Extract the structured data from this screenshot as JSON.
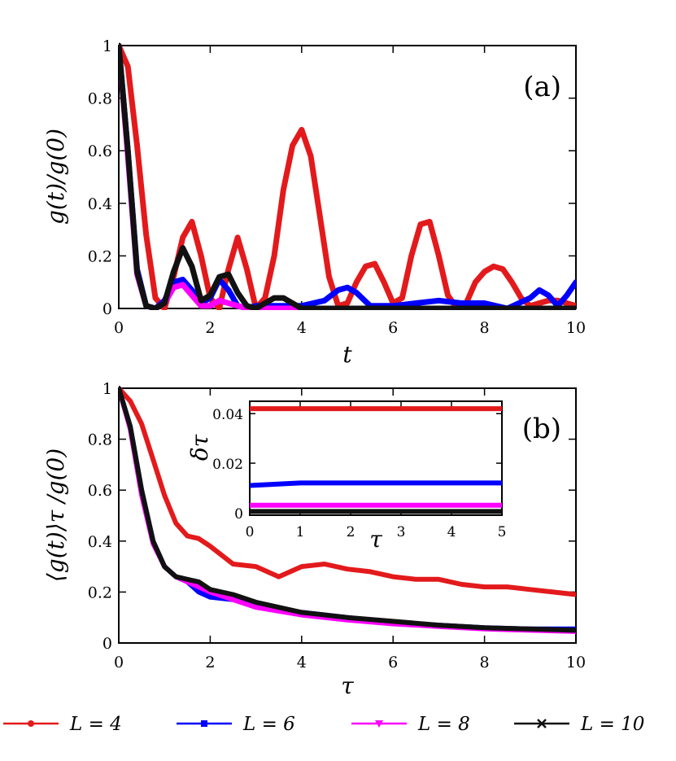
{
  "chart_data": [
    {
      "id": "a",
      "type": "line",
      "panel_label": "(a)",
      "xlabel": "t",
      "ylabel": "g(t)/g(0)",
      "xlim": [
        0,
        10
      ],
      "ylim": [
        0,
        1
      ],
      "xticks": [
        "0",
        "2",
        "4",
        "6",
        "8",
        "10"
      ],
      "yticks": [
        "0",
        "0.2",
        "0.4",
        "0.6",
        "0.8",
        "1"
      ],
      "series": [
        {
          "name": "L = 4",
          "color": "#e31a1c",
          "x": [
            0,
            0.2,
            0.4,
            0.6,
            0.8,
            1.0,
            1.2,
            1.4,
            1.6,
            1.8,
            2.0,
            2.2,
            2.4,
            2.6,
            2.8,
            3.0,
            3.2,
            3.4,
            3.6,
            3.8,
            4.0,
            4.2,
            4.4,
            4.6,
            4.8,
            5.0,
            5.2,
            5.4,
            5.6,
            5.8,
            6.0,
            6.2,
            6.4,
            6.6,
            6.8,
            7.0,
            7.2,
            7.4,
            7.6,
            7.8,
            8.0,
            8.2,
            8.4,
            8.6,
            8.8,
            9.0,
            9.2,
            9.4,
            9.6,
            9.8,
            10.0
          ],
          "y": [
            1.0,
            0.92,
            0.62,
            0.28,
            0.04,
            0.0,
            0.12,
            0.27,
            0.33,
            0.2,
            0.04,
            0.0,
            0.15,
            0.27,
            0.15,
            0.0,
            0.04,
            0.2,
            0.45,
            0.62,
            0.68,
            0.58,
            0.35,
            0.12,
            0.01,
            0.02,
            0.1,
            0.16,
            0.17,
            0.1,
            0.02,
            0.04,
            0.2,
            0.32,
            0.33,
            0.2,
            0.05,
            0.0,
            0.02,
            0.1,
            0.14,
            0.16,
            0.15,
            0.1,
            0.04,
            0.01,
            0.02,
            0.03,
            0.03,
            0.02,
            0.01
          ]
        },
        {
          "name": "L = 6",
          "color": "#0000ff",
          "x": [
            0,
            0.2,
            0.4,
            0.6,
            0.8,
            1.0,
            1.2,
            1.4,
            1.6,
            1.8,
            2.0,
            2.2,
            2.4,
            2.6,
            2.8,
            3.0,
            3.5,
            4.0,
            4.5,
            4.8,
            5.0,
            5.2,
            5.5,
            6.0,
            6.5,
            7.0,
            7.5,
            8.0,
            8.5,
            9.0,
            9.2,
            9.4,
            9.6,
            9.8,
            10.0
          ],
          "y": [
            1.0,
            0.6,
            0.15,
            0.01,
            0.0,
            0.03,
            0.1,
            0.11,
            0.07,
            0.02,
            0.04,
            0.11,
            0.07,
            0.01,
            0.0,
            0.01,
            0.01,
            0.01,
            0.03,
            0.07,
            0.08,
            0.06,
            0.01,
            0.01,
            0.02,
            0.03,
            0.02,
            0.02,
            0.0,
            0.04,
            0.07,
            0.05,
            0.01,
            0.05,
            0.1
          ]
        },
        {
          "name": "L = 8",
          "color": "#ff00ff",
          "x": [
            0,
            0.2,
            0.4,
            0.6,
            0.8,
            1.0,
            1.2,
            1.4,
            1.6,
            1.8,
            2.0,
            2.2,
            2.4,
            2.6,
            2.8,
            3.0,
            4.0,
            5.0,
            6.0,
            7.0,
            8.0,
            9.0,
            10.0
          ],
          "y": [
            1.0,
            0.58,
            0.13,
            0.01,
            0.0,
            0.02,
            0.08,
            0.09,
            0.05,
            0.01,
            0.01,
            0.03,
            0.02,
            0.01,
            0.0,
            0.0,
            0.0,
            0.0,
            0.0,
            0.0,
            0.0,
            0.0,
            0.0
          ]
        },
        {
          "name": "L = 10",
          "color": "#111111",
          "x": [
            0,
            0.2,
            0.4,
            0.6,
            0.8,
            1.0,
            1.2,
            1.4,
            1.6,
            1.8,
            2.0,
            2.2,
            2.4,
            2.6,
            2.8,
            3.0,
            3.2,
            3.4,
            3.6,
            3.8,
            4.0,
            4.5,
            5.0,
            6.0,
            7.0,
            8.0,
            9.0,
            10.0
          ],
          "y": [
            1.0,
            0.6,
            0.14,
            0.01,
            0.0,
            0.02,
            0.14,
            0.23,
            0.16,
            0.03,
            0.05,
            0.12,
            0.13,
            0.06,
            0.01,
            0.0,
            0.02,
            0.04,
            0.04,
            0.02,
            0.0,
            0.0,
            0.0,
            0.0,
            0.0,
            0.0,
            0.0,
            0.0
          ]
        }
      ]
    },
    {
      "id": "b",
      "type": "line",
      "panel_label": "(b)",
      "xlabel": "τ",
      "ylabel": "⟨g(t)⟩τ /g(0)",
      "xlim": [
        0,
        10
      ],
      "ylim": [
        0,
        1
      ],
      "xticks": [
        "0",
        "2",
        "4",
        "6",
        "8",
        "10"
      ],
      "yticks": [
        "0",
        "0.2",
        "0.4",
        "0.6",
        "0.8",
        "1"
      ],
      "series": [
        {
          "name": "L = 4",
          "color": "#e31a1c",
          "x": [
            0,
            0.25,
            0.5,
            0.75,
            1.0,
            1.25,
            1.5,
            1.75,
            2.0,
            2.5,
            3.0,
            3.5,
            4.0,
            4.5,
            5.0,
            5.5,
            6.0,
            6.5,
            7.0,
            7.5,
            8.0,
            8.5,
            9.0,
            9.5,
            10.0
          ],
          "y": [
            1.0,
            0.95,
            0.86,
            0.72,
            0.58,
            0.47,
            0.42,
            0.41,
            0.38,
            0.31,
            0.3,
            0.26,
            0.3,
            0.31,
            0.29,
            0.28,
            0.26,
            0.25,
            0.25,
            0.23,
            0.22,
            0.22,
            0.21,
            0.2,
            0.19
          ]
        },
        {
          "name": "L = 6",
          "color": "#0000ff",
          "x": [
            0,
            0.25,
            0.5,
            0.75,
            1.0,
            1.25,
            1.5,
            1.75,
            2.0,
            2.5,
            3.0,
            4.0,
            5.0,
            6.0,
            7.0,
            8.0,
            9.0,
            10.0
          ],
          "y": [
            1.0,
            0.85,
            0.6,
            0.4,
            0.3,
            0.26,
            0.24,
            0.2,
            0.18,
            0.17,
            0.15,
            0.12,
            0.1,
            0.08,
            0.07,
            0.06,
            0.055,
            0.055
          ]
        },
        {
          "name": "L = 8",
          "color": "#ff00ff",
          "x": [
            0,
            0.25,
            0.5,
            0.75,
            1.0,
            1.25,
            1.5,
            1.75,
            2.0,
            2.5,
            3.0,
            4.0,
            5.0,
            6.0,
            7.0,
            8.0,
            9.0,
            10.0
          ],
          "y": [
            1.0,
            0.84,
            0.58,
            0.39,
            0.3,
            0.26,
            0.24,
            0.22,
            0.2,
            0.17,
            0.14,
            0.11,
            0.09,
            0.075,
            0.065,
            0.055,
            0.05,
            0.045
          ]
        },
        {
          "name": "L = 10",
          "color": "#111111",
          "x": [
            0,
            0.25,
            0.5,
            0.75,
            1.0,
            1.25,
            1.5,
            1.75,
            2.0,
            2.5,
            3.0,
            4.0,
            5.0,
            6.0,
            7.0,
            8.0,
            9.0,
            10.0
          ],
          "y": [
            1.0,
            0.85,
            0.6,
            0.4,
            0.3,
            0.26,
            0.25,
            0.24,
            0.21,
            0.19,
            0.16,
            0.12,
            0.1,
            0.085,
            0.07,
            0.06,
            0.055,
            0.05
          ]
        }
      ]
    },
    {
      "id": "b-inset",
      "type": "line",
      "xlabel": "τ",
      "ylabel": "δτ",
      "xlim": [
        0,
        5
      ],
      "ylim": [
        -0.001,
        0.045
      ],
      "xticks": [
        "0",
        "1",
        "2",
        "3",
        "4",
        "5"
      ],
      "yticks": [
        "0",
        "0.02",
        "0.04"
      ],
      "series": [
        {
          "name": "L = 4",
          "color": "#e31a1c",
          "x": [
            0,
            1,
            2,
            3,
            4,
            5
          ],
          "y": [
            0.042,
            0.042,
            0.042,
            0.042,
            0.042,
            0.042
          ]
        },
        {
          "name": "L = 6",
          "color": "#0000ff",
          "x": [
            0,
            1,
            2,
            3,
            4,
            5
          ],
          "y": [
            0.011,
            0.012,
            0.012,
            0.012,
            0.012,
            0.012
          ]
        },
        {
          "name": "L = 8",
          "color": "#ff00ff",
          "x": [
            0,
            1,
            2,
            3,
            4,
            5
          ],
          "y": [
            0.003,
            0.003,
            0.003,
            0.003,
            0.003,
            0.003
          ]
        },
        {
          "name": "L = 10",
          "color": "#111111",
          "x": [
            0,
            1,
            2,
            3,
            4,
            5
          ],
          "y": [
            0.0005,
            0.0005,
            0.0005,
            0.0005,
            0.0005,
            0.0005
          ]
        }
      ]
    }
  ],
  "legend": [
    {
      "label": "L = 4",
      "color": "#e31a1c",
      "marker": "dot"
    },
    {
      "label": "L = 6",
      "color": "#0000ff",
      "marker": "square"
    },
    {
      "label": "L = 8",
      "color": "#ff00ff",
      "marker": "triangle"
    },
    {
      "label": "L = 10",
      "color": "#111111",
      "marker": "x"
    }
  ]
}
